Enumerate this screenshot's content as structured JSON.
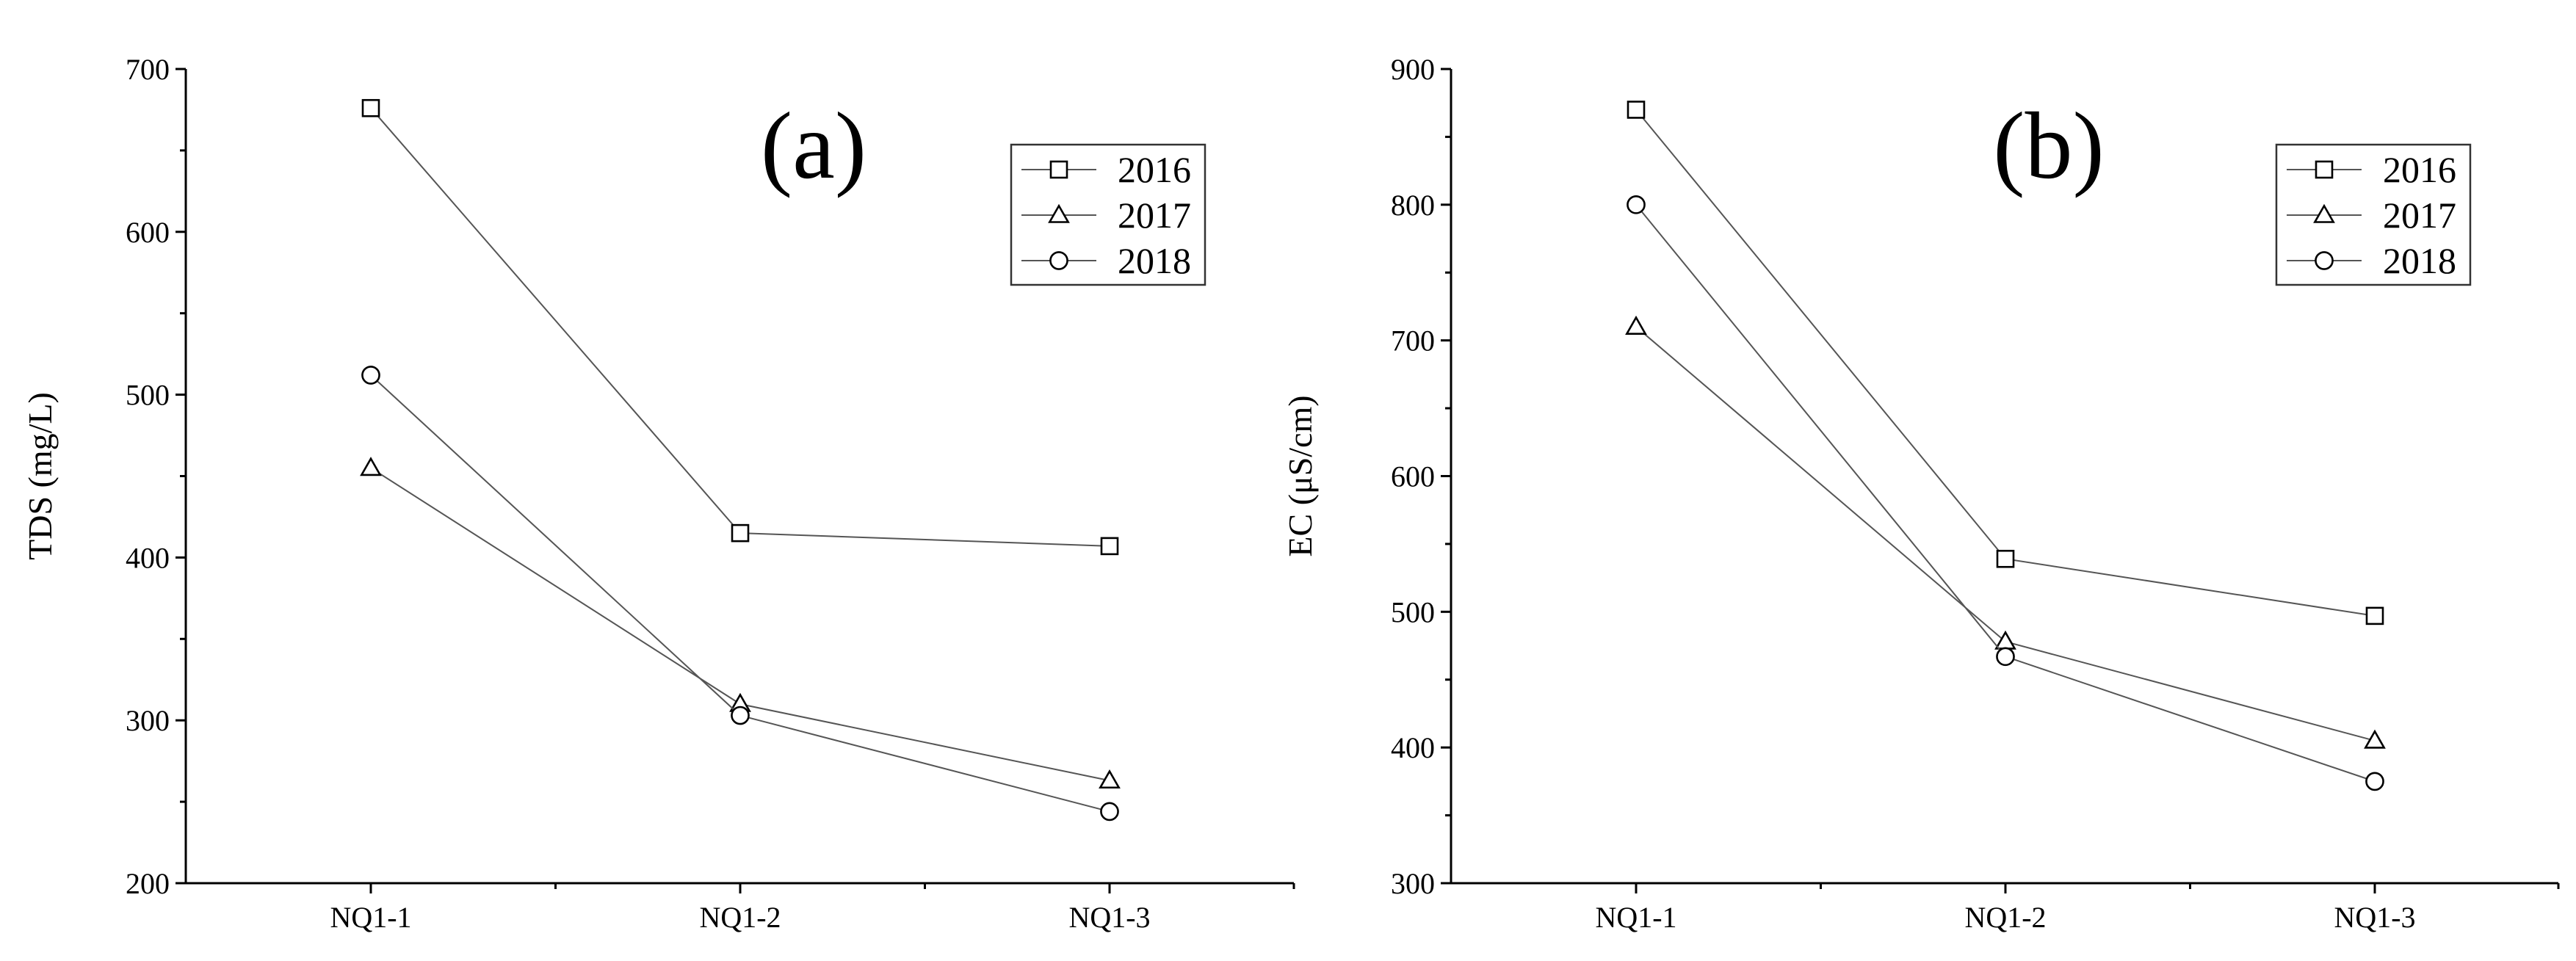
{
  "chart_data": [
    {
      "type": "line",
      "panel_label": "(a)",
      "categories": [
        "NQ1-1",
        "NQ1-2",
        "NQ1-3"
      ],
      "series": [
        {
          "name": "2016",
          "marker": "square",
          "values": [
            676,
            415,
            407
          ]
        },
        {
          "name": "2017",
          "marker": "triangle",
          "values": [
            455,
            310,
            263
          ]
        },
        {
          "name": "2018",
          "marker": "circle",
          "values": [
            512,
            303,
            244
          ]
        }
      ],
      "xlabel": "",
      "ylabel": "TDS (mg/L)",
      "ylim": [
        200,
        700
      ],
      "yticks": [
        "200",
        "300",
        "400",
        "500",
        "600",
        "700"
      ],
      "grid": false,
      "legend_position": "top-right"
    },
    {
      "type": "line",
      "panel_label": "(b)",
      "categories": [
        "NQ1-1",
        "NQ1-2",
        "NQ1-3"
      ],
      "series": [
        {
          "name": "2016",
          "marker": "square",
          "values": [
            870,
            539,
            497
          ]
        },
        {
          "name": "2017",
          "marker": "triangle",
          "values": [
            710,
            478,
            405
          ]
        },
        {
          "name": "2018",
          "marker": "circle",
          "values": [
            800,
            467,
            375
          ]
        }
      ],
      "xlabel": "",
      "ylabel": "EC (μS/cm)",
      "ylim": [
        300,
        900
      ],
      "yticks": [
        "300",
        "400",
        "500",
        "600",
        "700",
        "800",
        "900"
      ],
      "grid": false,
      "legend_position": "top-right"
    }
  ]
}
